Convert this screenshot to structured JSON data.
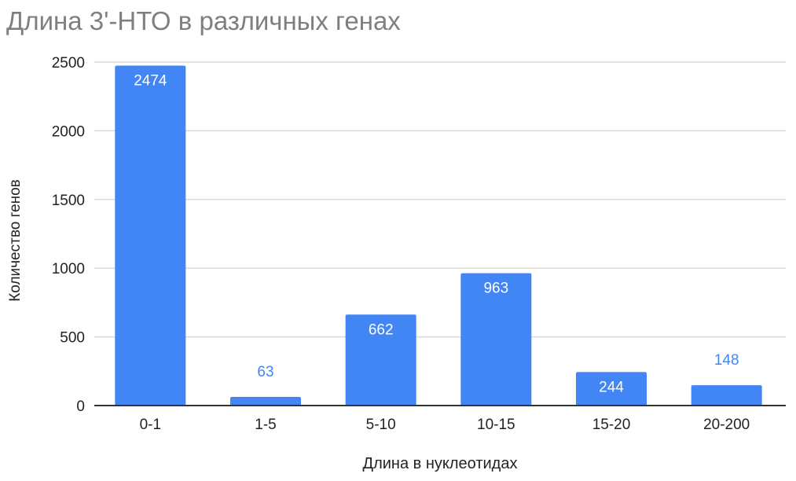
{
  "chart_data": {
    "type": "bar",
    "title": "Длина 3'-НТО в различных генах",
    "xlabel": "Длина в нуклеотидах",
    "ylabel": "Количество генов",
    "categories": [
      "0-1",
      "1-5",
      "5-10",
      "10-15",
      "15-20",
      "20-200"
    ],
    "values": [
      2474,
      63,
      662,
      963,
      244,
      148
    ],
    "data_labels": [
      "2474",
      "63",
      "662",
      "963",
      "244",
      "148"
    ],
    "yticks": [
      0,
      500,
      1000,
      1500,
      2000,
      2500
    ],
    "ylim": [
      0,
      2500
    ],
    "grid": true,
    "legend": "none"
  },
  "colors": {
    "bar": "#4285f4",
    "label_inside": "#ffffff",
    "label_outside": "#4285f4",
    "grid": "#d9d9d9",
    "axis": "#333333",
    "tick_text": "#222222",
    "title": "#7f7f7f"
  }
}
